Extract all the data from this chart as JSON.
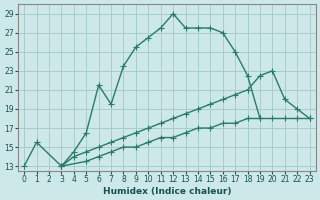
{
  "xlabel": "Humidex (Indice chaleur)",
  "background_color": "#cce8e8",
  "grid_color": "#aacccc",
  "line_color": "#2a7a6a",
  "xlim": [
    -0.5,
    23.5
  ],
  "ylim": [
    12.5,
    30
  ],
  "xticks": [
    0,
    1,
    2,
    3,
    4,
    5,
    6,
    7,
    8,
    9,
    10,
    11,
    12,
    13,
    14,
    15,
    16,
    17,
    18,
    19,
    20,
    21,
    22,
    23
  ],
  "yticks": [
    13,
    15,
    17,
    19,
    21,
    23,
    25,
    27,
    29
  ],
  "line1_x": [
    0,
    1,
    3,
    4,
    5,
    6,
    7,
    8,
    9,
    10,
    11,
    12,
    13,
    14,
    15,
    16,
    17,
    18,
    19
  ],
  "line1_y": [
    13,
    15.5,
    13,
    14.5,
    16.5,
    21.5,
    19.5,
    23.5,
    25.5,
    26.5,
    27.5,
    29,
    27.5,
    27.5,
    27.5,
    27,
    25,
    22.5,
    18
  ],
  "line2_x": [
    3,
    4,
    5,
    6,
    7,
    8,
    9,
    10,
    11,
    12,
    13,
    14,
    15,
    16,
    17,
    18,
    19,
    20,
    21,
    22,
    23
  ],
  "line2_y": [
    13,
    14,
    14.5,
    15,
    15.5,
    16,
    16.5,
    17,
    17.5,
    18,
    18.5,
    19,
    19.5,
    20,
    20.5,
    21,
    22.5,
    23,
    20,
    19,
    18
  ],
  "line3_x": [
    3,
    5,
    6,
    7,
    8,
    9,
    10,
    11,
    12,
    13,
    14,
    15,
    16,
    17,
    18,
    19,
    20,
    21,
    22,
    23
  ],
  "line3_y": [
    13,
    13.5,
    14,
    14.5,
    15,
    15,
    15.5,
    16,
    16,
    16.5,
    17,
    17,
    17.5,
    17.5,
    18,
    18,
    18,
    18,
    18,
    18
  ]
}
